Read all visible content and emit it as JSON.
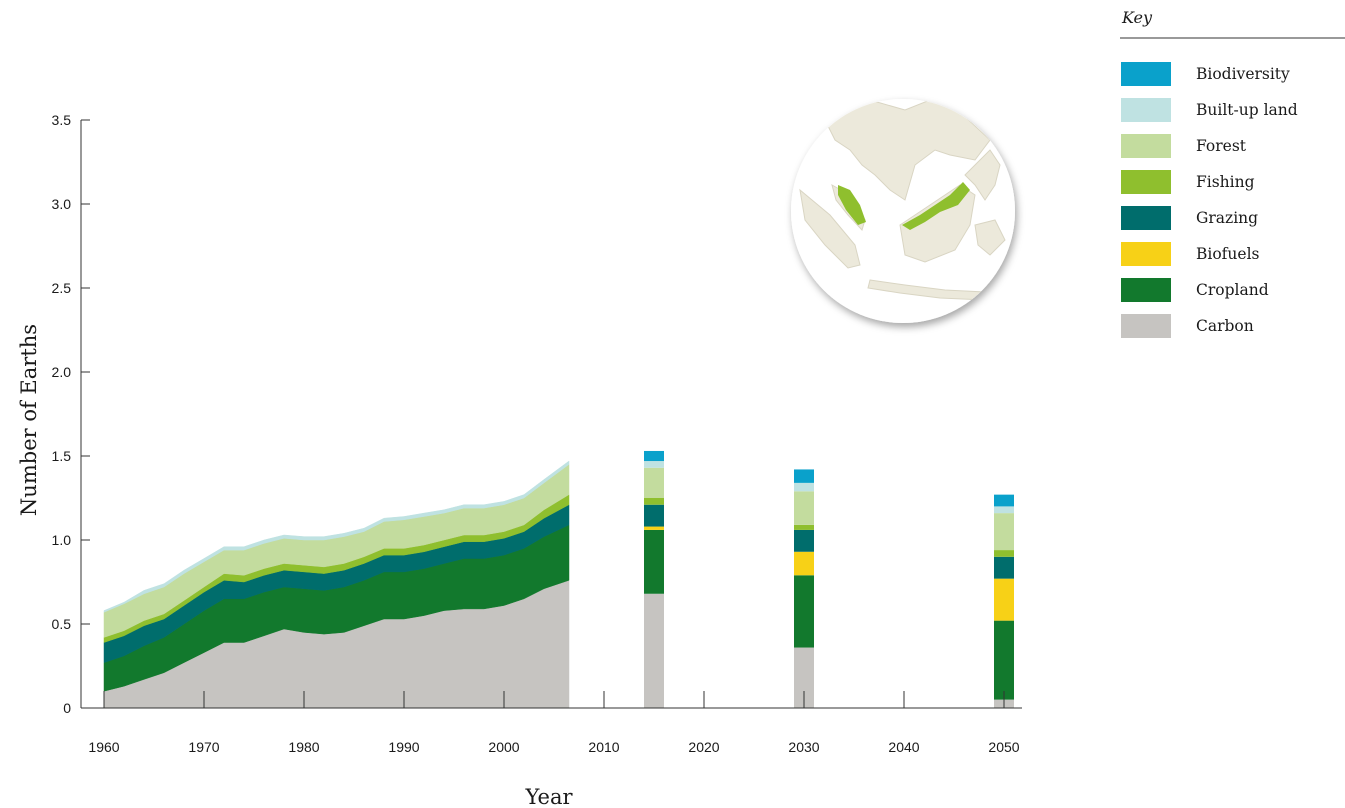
{
  "chart_data": {
    "type": "area",
    "title": "",
    "xlabel": "Year",
    "ylabel": "Number of Earths",
    "xlim": [
      1960,
      2050
    ],
    "ylim": [
      0,
      3.5
    ],
    "x_ticks": [
      "1960",
      "1970",
      "1980",
      "1990",
      "2000",
      "2010",
      "2020",
      "2030",
      "2040",
      "2050"
    ],
    "y_ticks": [
      "0",
      "0.5",
      "1.0",
      "1.5",
      "2.0",
      "2.5",
      "3.0",
      "3.5"
    ],
    "grid": false,
    "legend_title": "Key",
    "legend_position": "top-right",
    "series": [
      {
        "name": "Carbon",
        "color": "#c6c4c1"
      },
      {
        "name": "Cropland",
        "color": "#12792d"
      },
      {
        "name": "Biofuels",
        "color": "#f7d117"
      },
      {
        "name": "Grazing",
        "color": "#006d6c"
      },
      {
        "name": "Fishing",
        "color": "#8fbf2e"
      },
      {
        "name": "Forest",
        "color": "#c3dc9e"
      },
      {
        "name": "Built-up land",
        "color": "#bfe2e2"
      },
      {
        "name": "Biodiversity",
        "color": "#0aa1cb"
      }
    ],
    "area_x": [
      1960,
      1962,
      1964,
      1966,
      1968,
      1970,
      1972,
      1974,
      1976,
      1978,
      1980,
      1982,
      1984,
      1986,
      1988,
      1990,
      1992,
      1994,
      1996,
      1998,
      2000,
      2002,
      2004,
      2006.5
    ],
    "area_values": {
      "Carbon": [
        0.1,
        0.13,
        0.17,
        0.21,
        0.27,
        0.33,
        0.39,
        0.39,
        0.43,
        0.47,
        0.45,
        0.44,
        0.45,
        0.49,
        0.53,
        0.53,
        0.55,
        0.58,
        0.59,
        0.59,
        0.61,
        0.65,
        0.71,
        0.76
      ],
      "Cropland": [
        0.17,
        0.18,
        0.2,
        0.21,
        0.23,
        0.25,
        0.26,
        0.26,
        0.26,
        0.25,
        0.26,
        0.26,
        0.27,
        0.27,
        0.28,
        0.28,
        0.28,
        0.28,
        0.3,
        0.3,
        0.3,
        0.3,
        0.31,
        0.33
      ],
      "Biofuels": [
        0,
        0,
        0,
        0,
        0,
        0,
        0,
        0,
        0,
        0,
        0,
        0,
        0,
        0,
        0,
        0,
        0,
        0,
        0,
        0,
        0,
        0,
        0,
        0
      ],
      "Grazing": [
        0.12,
        0.12,
        0.12,
        0.11,
        0.11,
        0.11,
        0.11,
        0.1,
        0.1,
        0.1,
        0.1,
        0.1,
        0.1,
        0.1,
        0.1,
        0.1,
        0.1,
        0.1,
        0.1,
        0.1,
        0.1,
        0.1,
        0.11,
        0.12
      ],
      "Fishing": [
        0.03,
        0.03,
        0.03,
        0.03,
        0.03,
        0.03,
        0.04,
        0.04,
        0.04,
        0.04,
        0.04,
        0.04,
        0.04,
        0.04,
        0.04,
        0.04,
        0.04,
        0.04,
        0.04,
        0.04,
        0.04,
        0.04,
        0.05,
        0.06
      ],
      "Forest": [
        0.15,
        0.16,
        0.16,
        0.16,
        0.16,
        0.15,
        0.14,
        0.15,
        0.15,
        0.15,
        0.15,
        0.16,
        0.16,
        0.15,
        0.16,
        0.17,
        0.17,
        0.16,
        0.16,
        0.16,
        0.16,
        0.16,
        0.16,
        0.18
      ],
      "Built-up land": [
        0.01,
        0.01,
        0.02,
        0.02,
        0.02,
        0.02,
        0.02,
        0.02,
        0.02,
        0.02,
        0.02,
        0.02,
        0.02,
        0.02,
        0.02,
        0.02,
        0.02,
        0.02,
        0.02,
        0.02,
        0.02,
        0.02,
        0.02,
        0.02
      ],
      "Biodiversity": [
        0,
        0,
        0,
        0,
        0,
        0,
        0,
        0,
        0,
        0,
        0,
        0,
        0,
        0,
        0,
        0,
        0,
        0,
        0,
        0,
        0,
        0,
        0,
        0
      ]
    },
    "bars": [
      {
        "year": 2015,
        "values": {
          "Carbon": 0.68,
          "Cropland": 0.38,
          "Biofuels": 0.02,
          "Grazing": 0.13,
          "Fishing": 0.04,
          "Forest": 0.18,
          "Built-up land": 0.04,
          "Biodiversity": 0.06
        }
      },
      {
        "year": 2030,
        "values": {
          "Carbon": 0.36,
          "Cropland": 0.43,
          "Biofuels": 0.14,
          "Grazing": 0.13,
          "Fishing": 0.03,
          "Forest": 0.2,
          "Built-up land": 0.05,
          "Biodiversity": 0.08
        }
      },
      {
        "year": 2050,
        "values": {
          "Carbon": 0.05,
          "Cropland": 0.47,
          "Biofuels": 0.25,
          "Grazing": 0.13,
          "Fishing": 0.04,
          "Forest": 0.22,
          "Built-up land": 0.04,
          "Biodiversity": 0.07
        }
      }
    ]
  },
  "map": {
    "highlight_color": "#8fbf2e",
    "land_color": "#ece9db",
    "sea_color": "#ffffff"
  }
}
